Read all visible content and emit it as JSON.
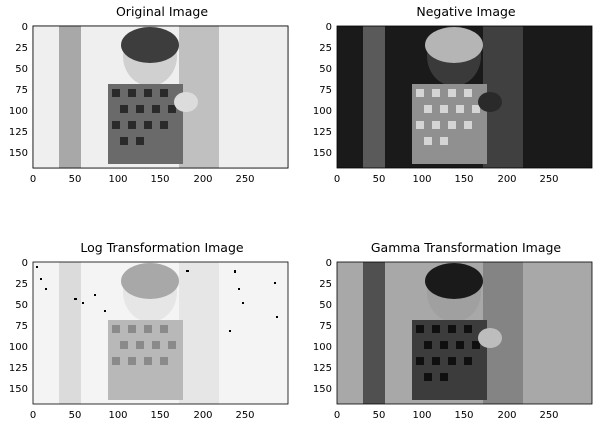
{
  "figure": {
    "panels": [
      {
        "title": "Original Image",
        "variant": "original",
        "x_ticks": [
          "0",
          "50",
          "100",
          "150",
          "200",
          "250"
        ],
        "y_ticks": [
          "0",
          "25",
          "50",
          "75",
          "100",
          "125",
          "150"
        ]
      },
      {
        "title": "Negative Image",
        "variant": "negative",
        "x_ticks": [
          "0",
          "50",
          "100",
          "150",
          "200",
          "250"
        ],
        "y_ticks": [
          "0",
          "25",
          "50",
          "75",
          "100",
          "125",
          "150"
        ]
      },
      {
        "title": "Log Transformation Image",
        "variant": "log",
        "x_ticks": [
          "0",
          "50",
          "100",
          "150",
          "200",
          "250"
        ],
        "y_ticks": [
          "0",
          "25",
          "50",
          "75",
          "100",
          "125",
          "150"
        ]
      },
      {
        "title": "Gamma Transformation Image",
        "variant": "gamma",
        "x_ticks": [
          "0",
          "50",
          "100",
          "150",
          "200",
          "250"
        ],
        "y_ticks": [
          "0",
          "25",
          "50",
          "75",
          "100",
          "125",
          "150"
        ]
      }
    ]
  }
}
